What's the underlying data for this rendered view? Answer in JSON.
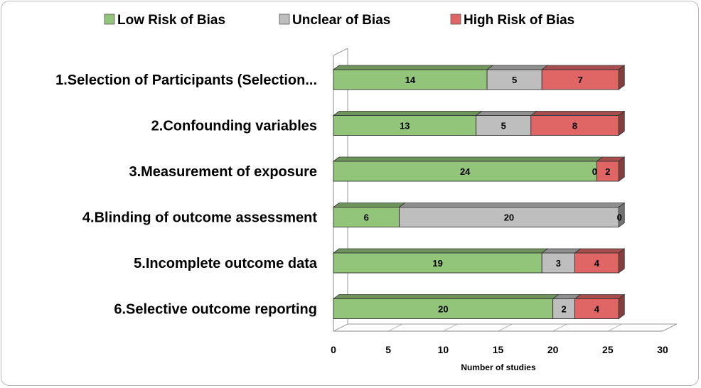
{
  "chart_data": {
    "type": "bar",
    "orientation": "horizontal",
    "stacked": true,
    "style": "3d",
    "categories": [
      "1.Selection of Participants (Selection...",
      "2.Confounding variables",
      "3.Measurement of exposure",
      "4.Blinding of outcome assessment",
      "5.Incomplete outcome data",
      "6.Selective outcome reporting"
    ],
    "series": [
      {
        "name": "Low Risk of Bias",
        "color": "#92c57a",
        "values": [
          14,
          13,
          24,
          6,
          19,
          20
        ]
      },
      {
        "name": "Unclear of Bias",
        "color": "#bebebe",
        "values": [
          5,
          5,
          0,
          20,
          3,
          2
        ]
      },
      {
        "name": "High Risk of Bias",
        "color": "#e06666",
        "values": [
          7,
          8,
          2,
          0,
          4,
          4
        ]
      }
    ],
    "xlabel": "Number of studies",
    "ylabel": "",
    "xlim": [
      0,
      30
    ],
    "xticks": [
      "0",
      "5",
      "10",
      "15",
      "20",
      "25",
      "30"
    ],
    "legend_position": "top",
    "grid": false
  }
}
